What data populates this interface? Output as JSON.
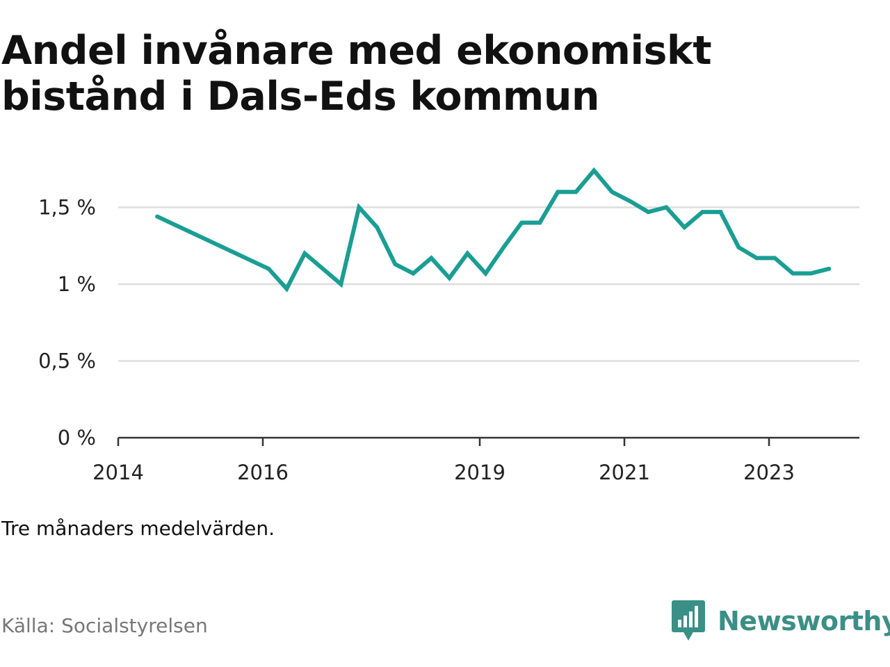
{
  "title": "Andel invånare med ekonomiskt bistånd i Dals-Eds kommun",
  "note": "Tre månaders medelvärden.",
  "source": "Källa: Socialstyrelsen",
  "brand": {
    "name": "Newsworthy",
    "color": "#3a8f86",
    "logo_icon": "bar-chart-speech-bubble-icon"
  },
  "chart_data": {
    "type": "line",
    "title": "Andel invånare med ekonomiskt bistånd i Dals-Eds kommun",
    "xlabel": "",
    "ylabel": "",
    "xlim": [
      2014.0,
      2024.25
    ],
    "ylim": [
      0,
      1.9
    ],
    "x_ticks": [
      {
        "value": 2014,
        "label": "2014"
      },
      {
        "value": 2016,
        "label": "2016"
      },
      {
        "value": 2019,
        "label": "2019"
      },
      {
        "value": 2021,
        "label": "2021"
      },
      {
        "value": 2023,
        "label": "2023"
      }
    ],
    "y_ticks": [
      {
        "value": 0,
        "label": "0 %"
      },
      {
        "value": 0.5,
        "label": "0,5 %"
      },
      {
        "value": 1.0,
        "label": "1 %"
      },
      {
        "value": 1.5,
        "label": "1,5 %"
      }
    ],
    "grid": true,
    "line_color": "#1a9e94",
    "series": [
      {
        "x": [
          2014.54,
          2016.08,
          2016.33,
          2016.58,
          2017.08,
          2017.33,
          2017.58,
          2017.83,
          2018.08,
          2018.33,
          2018.58,
          2018.83,
          2019.08,
          2019.33,
          2019.58,
          2019.83,
          2020.08,
          2020.33,
          2020.58,
          2020.83,
          2021.08,
          2021.33,
          2021.58,
          2021.83,
          2022.08,
          2022.33,
          2022.58,
          2022.83,
          2023.08,
          2023.33,
          2023.58,
          2023.83
        ],
        "values": [
          1.44,
          1.1,
          0.97,
          1.2,
          1.0,
          1.5,
          1.37,
          1.13,
          1.07,
          1.17,
          1.04,
          1.2,
          1.07,
          1.24,
          1.4,
          1.4,
          1.6,
          1.6,
          1.74,
          1.6,
          1.54,
          1.47,
          1.5,
          1.37,
          1.47,
          1.47,
          1.24,
          1.17,
          1.17,
          1.07,
          1.07,
          1.1
        ]
      }
    ]
  }
}
